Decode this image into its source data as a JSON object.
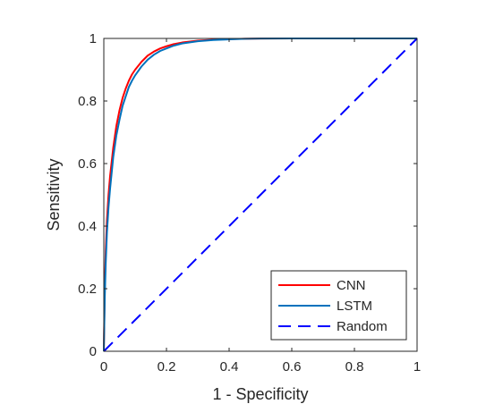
{
  "chart_data": {
    "type": "line",
    "title": "",
    "xlabel": "1 - Specificity",
    "ylabel": "Sensitivity",
    "xlim": [
      0,
      1
    ],
    "ylim": [
      0,
      1
    ],
    "xticks": [
      0,
      0.2,
      0.4,
      0.6,
      0.8,
      1
    ],
    "yticks": [
      0,
      0.2,
      0.4,
      0.6,
      0.8,
      1
    ],
    "xtick_labels": [
      "0",
      "0.2",
      "0.4",
      "0.6",
      "0.8",
      "1"
    ],
    "ytick_labels": [
      "0",
      "0.2",
      "0.4",
      "0.6",
      "0.8",
      "1"
    ],
    "grid": false,
    "box": true,
    "legend_position": "bottom-right",
    "series": [
      {
        "name": "CNN",
        "color": "#ff0000",
        "style": "solid",
        "x": [
          0,
          0.003,
          0.006,
          0.01,
          0.015,
          0.02,
          0.03,
          0.04,
          0.05,
          0.06,
          0.07,
          0.08,
          0.09,
          0.1,
          0.12,
          0.14,
          0.16,
          0.18,
          0.2,
          0.22,
          0.25,
          0.3,
          0.35,
          0.4,
          0.45,
          0.5,
          0.6,
          0.7,
          0.8,
          0.9,
          1
        ],
        "y": [
          0,
          0.2,
          0.32,
          0.42,
          0.5,
          0.56,
          0.65,
          0.72,
          0.77,
          0.81,
          0.84,
          0.865,
          0.885,
          0.9,
          0.925,
          0.945,
          0.958,
          0.968,
          0.975,
          0.981,
          0.987,
          0.993,
          0.996,
          0.998,
          0.999,
          0.9995,
          1,
          1,
          1,
          1,
          1
        ]
      },
      {
        "name": "LSTM",
        "color": "#0072bd",
        "style": "solid",
        "x": [
          0,
          0.003,
          0.006,
          0.01,
          0.015,
          0.02,
          0.03,
          0.04,
          0.05,
          0.06,
          0.07,
          0.08,
          0.09,
          0.1,
          0.12,
          0.14,
          0.16,
          0.18,
          0.2,
          0.22,
          0.25,
          0.3,
          0.35,
          0.4,
          0.45,
          0.5,
          0.6,
          0.7,
          0.8,
          0.9,
          1
        ],
        "y": [
          0,
          0.17,
          0.28,
          0.38,
          0.46,
          0.52,
          0.62,
          0.69,
          0.74,
          0.785,
          0.815,
          0.845,
          0.865,
          0.882,
          0.91,
          0.932,
          0.948,
          0.96,
          0.968,
          0.976,
          0.984,
          0.991,
          0.995,
          0.997,
          0.999,
          0.9995,
          1,
          1,
          1,
          1,
          1
        ]
      },
      {
        "name": "Random",
        "color": "#0000ff",
        "style": "dashed",
        "x": [
          0,
          1
        ],
        "y": [
          0,
          1
        ]
      }
    ]
  }
}
